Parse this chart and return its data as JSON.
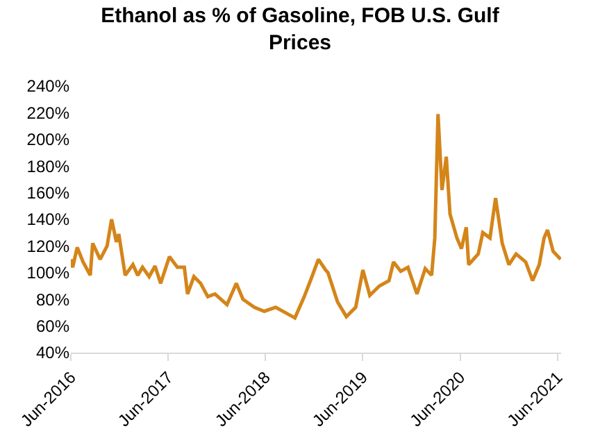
{
  "chart_data": {
    "type": "line",
    "title": "Ethanol as % of Gasoline, FOB U.S. Gulf Prices",
    "x": [
      "2016-06-01",
      "2016-06-08",
      "2016-06-25",
      "2016-07-17",
      "2016-08-13",
      "2016-08-22",
      "2016-09-19",
      "2016-10-15",
      "2016-11-01",
      "2016-11-19",
      "2016-11-28",
      "2016-12-22",
      "2017-01-20",
      "2017-02-07",
      "2017-02-25",
      "2017-03-22",
      "2017-04-13",
      "2017-05-04",
      "2017-06-06",
      "2017-07-06",
      "2017-08-01",
      "2017-08-13",
      "2017-09-06",
      "2017-10-01",
      "2017-10-28",
      "2017-11-24",
      "2018-01-08",
      "2018-02-12",
      "2018-03-09",
      "2018-04-21",
      "2018-05-28",
      "2018-07-10",
      "2018-08-15",
      "2018-09-20",
      "2018-10-25",
      "2018-11-21",
      "2018-12-17",
      "2019-01-13",
      "2019-01-22",
      "2019-02-27",
      "2019-04-01",
      "2019-05-06",
      "2019-06-02",
      "2019-06-28",
      "2019-08-03",
      "2019-09-08",
      "2019-09-25",
      "2019-10-22",
      "2019-11-18",
      "2019-12-22",
      "2020-01-22",
      "2020-02-15",
      "2020-02-27",
      "2020-03-10",
      "2020-03-25",
      "2020-04-10",
      "2020-04-24",
      "2020-05-20",
      "2020-06-06",
      "2020-06-24",
      "2020-07-03",
      "2020-08-08",
      "2020-08-25",
      "2020-09-21",
      "2020-10-12",
      "2020-11-06",
      "2020-12-01",
      "2020-12-28",
      "2021-02-02",
      "2021-02-28",
      "2021-03-25",
      "2021-04-12",
      "2021-04-25",
      "2021-05-16",
      "2021-06-13"
    ],
    "series": [
      {
        "color": "#d4851a",
        "values": [
          110,
          104,
          119,
          108,
          98,
          122,
          110,
          120,
          140,
          123,
          129,
          98,
          106,
          98,
          104,
          97,
          105,
          92,
          112,
          104,
          104,
          84,
          97,
          92,
          82,
          84,
          76,
          92,
          80,
          74,
          71,
          74,
          70,
          66,
          82,
          96,
          110,
          102,
          100,
          78,
          67,
          74,
          102,
          83,
          90,
          94,
          108,
          101,
          104,
          84,
          103,
          98,
          126,
          219,
          162,
          187,
          144,
          126,
          118,
          134,
          106,
          114,
          130,
          126,
          156,
          122,
          106,
          114,
          108,
          94,
          106,
          126,
          132,
          116,
          110
        ]
      }
    ],
    "xlim": [
      "2016-06-01",
      "2021-06-15"
    ],
    "xticks": [
      {
        "value": "2016-06-01",
        "label": "Jun-2016"
      },
      {
        "value": "2017-06-01",
        "label": "Jun-2017"
      },
      {
        "value": "2018-06-01",
        "label": "Jun-2018"
      },
      {
        "value": "2019-06-01",
        "label": "Jun-2019"
      },
      {
        "value": "2020-06-01",
        "label": "Jun-2020"
      },
      {
        "value": "2021-06-01",
        "label": "Jun-2021"
      }
    ],
    "ylim": [
      40,
      240
    ],
    "yticks": [
      {
        "value": 40,
        "label": "40%"
      },
      {
        "value": 60,
        "label": "60%"
      },
      {
        "value": 80,
        "label": "80%"
      },
      {
        "value": 100,
        "label": "100%"
      },
      {
        "value": 120,
        "label": "120%"
      },
      {
        "value": 140,
        "label": "140%"
      },
      {
        "value": 160,
        "label": "160%"
      },
      {
        "value": 180,
        "label": "180%"
      },
      {
        "value": 200,
        "label": "200%"
      },
      {
        "value": 220,
        "label": "220%"
      },
      {
        "value": 240,
        "label": "240%"
      }
    ],
    "grid": false,
    "marker": "none",
    "line_style": "solid"
  }
}
